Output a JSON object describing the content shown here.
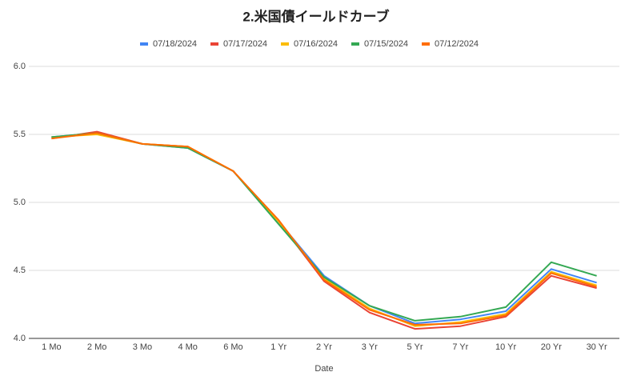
{
  "chart_data": {
    "type": "line",
    "title": "2.米国債イールドカーブ",
    "x_label": "Date",
    "categories": [
      "1 Mo",
      "2 Mo",
      "3 Mo",
      "4 Mo",
      "6 Mo",
      "1 Yr",
      "2 Yr",
      "3 Yr",
      "5 Yr",
      "7 Yr",
      "10 Yr",
      "20 Yr",
      "30 Yr"
    ],
    "series": [
      {
        "name": "07/18/2024",
        "color": "#4285f4",
        "values": [
          5.48,
          5.51,
          5.43,
          5.4,
          5.23,
          4.86,
          4.46,
          4.24,
          4.11,
          4.14,
          4.2,
          4.51,
          4.41
        ]
      },
      {
        "name": "07/17/2024",
        "color": "#ea4335",
        "values": [
          5.47,
          5.52,
          5.43,
          5.41,
          5.23,
          4.86,
          4.42,
          4.19,
          4.07,
          4.09,
          4.16,
          4.46,
          4.37
        ]
      },
      {
        "name": "07/16/2024",
        "color": "#fbbc04",
        "values": [
          5.48,
          5.5,
          5.43,
          5.41,
          5.23,
          4.86,
          4.44,
          4.22,
          4.09,
          4.12,
          4.18,
          4.49,
          4.39
        ]
      },
      {
        "name": "07/15/2024",
        "color": "#34a853",
        "values": [
          5.48,
          5.51,
          5.43,
          5.4,
          5.23,
          4.84,
          4.45,
          4.24,
          4.13,
          4.16,
          4.23,
          4.56,
          4.46
        ]
      },
      {
        "name": "07/12/2024",
        "color": "#ff6d01",
        "values": [
          5.47,
          5.51,
          5.43,
          5.41,
          5.23,
          4.87,
          4.43,
          4.21,
          4.1,
          4.11,
          4.17,
          4.48,
          4.38
        ]
      }
    ],
    "ylim": [
      4,
      6
    ],
    "yticks": [
      {
        "value": 4,
        "label": "4.0"
      },
      {
        "value": 4.5,
        "label": "4.5"
      },
      {
        "value": 5,
        "label": "5.0"
      },
      {
        "value": 5.5,
        "label": "5.5"
      },
      {
        "value": 6,
        "label": "6.0"
      }
    ],
    "grid": true,
    "legend": "top"
  }
}
